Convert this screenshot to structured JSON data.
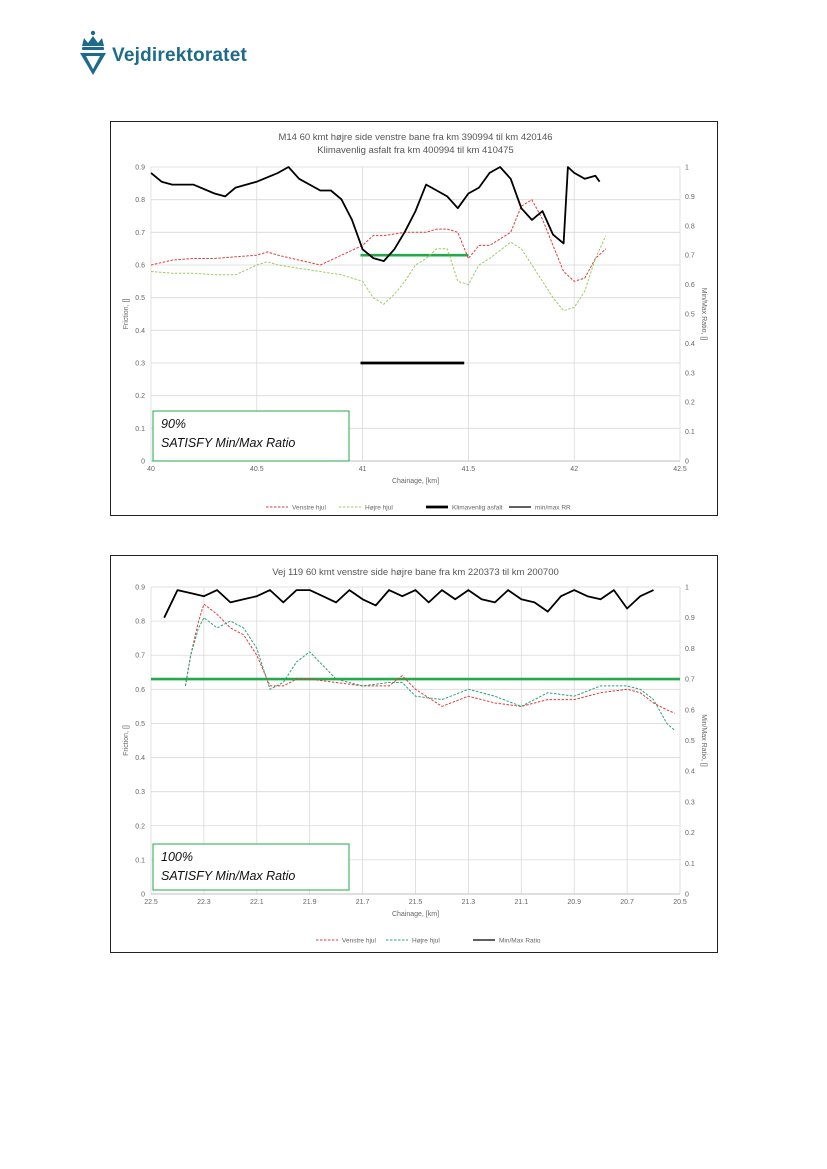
{
  "header": {
    "logo_text": "Vejdirektoratet",
    "logo_icon": "crown-shield-icon"
  },
  "colors": {
    "venstre": "#e23a3a",
    "hojre_chart1": "#9ccc65",
    "hojre_chart2": "#27a37a",
    "klima": "#000000",
    "minmax": "#000000",
    "threshold": "#23a84a",
    "brand": "#1d6b8c"
  },
  "chart_data": [
    {
      "type": "line",
      "title": "M14 60 kmt højre side venstre bane fra km 390994 til km 420146",
      "subtitle": "Klimavenlig asfalt fra km 400994 til km 410475",
      "xlabel": "Chainage, [km]",
      "ylabel": "Friction, []",
      "y2label": "Min/Max Ratio, []",
      "xlim": [
        40,
        42.5
      ],
      "ylim": [
        0,
        0.9
      ],
      "y2lim": [
        0,
        1
      ],
      "x_ticks": [
        "40",
        "40.5",
        "41",
        "41.5",
        "42",
        "42.5"
      ],
      "y_ticks": [
        "0",
        "0.1",
        "0.2",
        "0.3",
        "0.4",
        "0.5",
        "0.6",
        "0.7",
        "0.8",
        "0.9"
      ],
      "y2_ticks": [
        "0",
        "0.1",
        "0.2",
        "0.3",
        "0.4",
        "0.5",
        "0.6",
        "0.7",
        "0.8",
        "0.9",
        "1"
      ],
      "legend_position": "bottom",
      "annotation": {
        "line1": "90%",
        "line2": "SATISFY Min/Max Ratio"
      },
      "threshold_line": {
        "x": [
          40.99,
          41.5
        ],
        "y2": 0.7
      },
      "series": [
        {
          "name": "Venstre hjul",
          "axis": "left",
          "style": "dashed",
          "color": "#e23a3a",
          "x": [
            40.0,
            40.1,
            40.2,
            40.3,
            40.4,
            40.5,
            40.55,
            40.6,
            40.7,
            40.8,
            40.9,
            41.0,
            41.05,
            41.1,
            41.2,
            41.3,
            41.35,
            41.4,
            41.45,
            41.5,
            41.55,
            41.6,
            41.7,
            41.75,
            41.8,
            41.85,
            41.9,
            41.95,
            42.0,
            42.05,
            42.1,
            42.15
          ],
          "y": [
            0.6,
            0.615,
            0.62,
            0.62,
            0.625,
            0.63,
            0.64,
            0.63,
            0.615,
            0.6,
            0.63,
            0.66,
            0.69,
            0.69,
            0.7,
            0.7,
            0.71,
            0.71,
            0.7,
            0.62,
            0.66,
            0.66,
            0.7,
            0.78,
            0.8,
            0.74,
            0.66,
            0.58,
            0.55,
            0.56,
            0.62,
            0.65
          ]
        },
        {
          "name": "Højre hjul",
          "axis": "left",
          "style": "dashed",
          "color": "#9ccc65",
          "x": [
            40.0,
            40.1,
            40.2,
            40.3,
            40.4,
            40.5,
            40.55,
            40.6,
            40.7,
            40.8,
            40.9,
            41.0,
            41.05,
            41.1,
            41.15,
            41.2,
            41.25,
            41.3,
            41.35,
            41.4,
            41.45,
            41.5,
            41.55,
            41.6,
            41.7,
            41.75,
            41.8,
            41.85,
            41.9,
            41.95,
            42.0,
            42.05,
            42.1,
            42.15
          ],
          "y": [
            0.58,
            0.575,
            0.575,
            0.57,
            0.57,
            0.6,
            0.61,
            0.6,
            0.59,
            0.58,
            0.57,
            0.55,
            0.5,
            0.48,
            0.51,
            0.55,
            0.6,
            0.62,
            0.65,
            0.65,
            0.55,
            0.54,
            0.6,
            0.62,
            0.67,
            0.65,
            0.6,
            0.55,
            0.5,
            0.46,
            0.47,
            0.52,
            0.62,
            0.69
          ]
        },
        {
          "name": "Klimavenlig asfalt",
          "axis": "left",
          "style": "solid-thick",
          "color": "#000000",
          "x": [
            40.99,
            41.48
          ],
          "y": [
            0.3,
            0.3
          ]
        },
        {
          "name": "min/max RR",
          "axis": "right",
          "style": "solid",
          "color": "#000000",
          "x": [
            40.0,
            40.05,
            40.1,
            40.2,
            40.3,
            40.35,
            40.4,
            40.5,
            40.6,
            40.65,
            40.7,
            40.8,
            40.85,
            40.9,
            40.95,
            41.0,
            41.05,
            41.1,
            41.15,
            41.2,
            41.25,
            41.3,
            41.35,
            41.4,
            41.45,
            41.5,
            41.55,
            41.6,
            41.65,
            41.7,
            41.75,
            41.8,
            41.85,
            41.9,
            41.95,
            41.97,
            42.0,
            42.05,
            42.1,
            42.12
          ],
          "y": [
            0.98,
            0.95,
            0.94,
            0.94,
            0.91,
            0.9,
            0.93,
            0.95,
            0.98,
            1.0,
            0.96,
            0.92,
            0.92,
            0.89,
            0.82,
            0.72,
            0.69,
            0.68,
            0.72,
            0.78,
            0.85,
            0.94,
            0.92,
            0.9,
            0.86,
            0.91,
            0.93,
            0.98,
            1.0,
            0.96,
            0.86,
            0.82,
            0.85,
            0.77,
            0.74,
            1.0,
            0.98,
            0.96,
            0.97,
            0.95
          ]
        }
      ]
    },
    {
      "type": "line",
      "title": "Vej 119 60 kmt venstre side højre bane fra km 220373 til km 200700",
      "xlabel": "Chainage, [km]",
      "ylabel": "Friction, []",
      "y2label": "Min/Max Ratio, []",
      "x_reversed": true,
      "xlim": [
        22.5,
        20.5
      ],
      "ylim": [
        0,
        0.9
      ],
      "y2lim": [
        0,
        1
      ],
      "x_ticks": [
        "22.5",
        "22.3",
        "22.1",
        "21.9",
        "21.7",
        "21.5",
        "21.3",
        "21.1",
        "20.9",
        "20.7",
        "20.5"
      ],
      "y_ticks": [
        "0",
        "0.1",
        "0.2",
        "0.3",
        "0.4",
        "0.5",
        "0.6",
        "0.7",
        "0.8",
        "0.9"
      ],
      "y2_ticks": [
        "0",
        "0.1",
        "0.2",
        "0.3",
        "0.4",
        "0.5",
        "0.6",
        "0.7",
        "0.8",
        "0.9",
        "1"
      ],
      "legend_position": "bottom",
      "annotation": {
        "line1": "100%",
        "line2": "SATISFY Min/Max Ratio"
      },
      "threshold_line": {
        "x": [
          22.5,
          20.5
        ],
        "y2": 0.7
      },
      "series": [
        {
          "name": "Venstre hjul",
          "axis": "left",
          "style": "dashed",
          "color": "#e23a3a",
          "x": [
            22.37,
            22.35,
            22.32,
            22.3,
            22.25,
            22.2,
            22.15,
            22.1,
            22.05,
            22.0,
            21.95,
            21.9,
            21.8,
            21.7,
            21.6,
            21.55,
            21.5,
            21.4,
            21.3,
            21.2,
            21.1,
            21.0,
            20.9,
            20.8,
            20.7,
            20.65,
            20.6,
            20.55,
            20.52
          ],
          "y": [
            0.61,
            0.7,
            0.8,
            0.85,
            0.82,
            0.78,
            0.76,
            0.7,
            0.61,
            0.61,
            0.63,
            0.63,
            0.62,
            0.61,
            0.61,
            0.64,
            0.6,
            0.55,
            0.58,
            0.56,
            0.55,
            0.57,
            0.57,
            0.59,
            0.6,
            0.59,
            0.56,
            0.54,
            0.53
          ]
        },
        {
          "name": "Højre hjul",
          "axis": "left",
          "style": "dashed",
          "color": "#27a37a",
          "x": [
            22.37,
            22.35,
            22.32,
            22.3,
            22.25,
            22.2,
            22.15,
            22.1,
            22.05,
            22.0,
            21.95,
            21.9,
            21.8,
            21.7,
            21.6,
            21.55,
            21.5,
            21.4,
            21.3,
            21.2,
            21.1,
            21.0,
            20.9,
            20.8,
            20.7,
            20.65,
            20.6,
            20.55,
            20.52
          ],
          "y": [
            0.61,
            0.7,
            0.78,
            0.81,
            0.78,
            0.8,
            0.78,
            0.72,
            0.6,
            0.62,
            0.68,
            0.71,
            0.63,
            0.61,
            0.62,
            0.62,
            0.58,
            0.57,
            0.6,
            0.58,
            0.55,
            0.59,
            0.58,
            0.61,
            0.61,
            0.6,
            0.57,
            0.5,
            0.48
          ]
        },
        {
          "name": "Min/Max Ratio",
          "axis": "right",
          "style": "solid",
          "color": "#000000",
          "x": [
            22.45,
            22.4,
            22.35,
            22.3,
            22.25,
            22.2,
            22.15,
            22.1,
            22.05,
            22.0,
            21.95,
            21.9,
            21.85,
            21.8,
            21.75,
            21.7,
            21.65,
            21.6,
            21.55,
            21.5,
            21.45,
            21.4,
            21.35,
            21.3,
            21.25,
            21.2,
            21.15,
            21.1,
            21.05,
            21.0,
            20.95,
            20.9,
            20.85,
            20.8,
            20.75,
            20.7,
            20.65,
            20.6
          ],
          "y": [
            0.9,
            0.99,
            0.98,
            0.97,
            0.99,
            0.95,
            0.96,
            0.97,
            0.99,
            0.95,
            0.99,
            0.99,
            0.97,
            0.95,
            0.99,
            0.96,
            0.94,
            0.99,
            0.97,
            0.99,
            0.95,
            0.99,
            0.96,
            0.99,
            0.96,
            0.95,
            0.99,
            0.96,
            0.95,
            0.92,
            0.97,
            0.99,
            0.97,
            0.96,
            0.99,
            0.93,
            0.97,
            0.99
          ]
        }
      ]
    }
  ]
}
